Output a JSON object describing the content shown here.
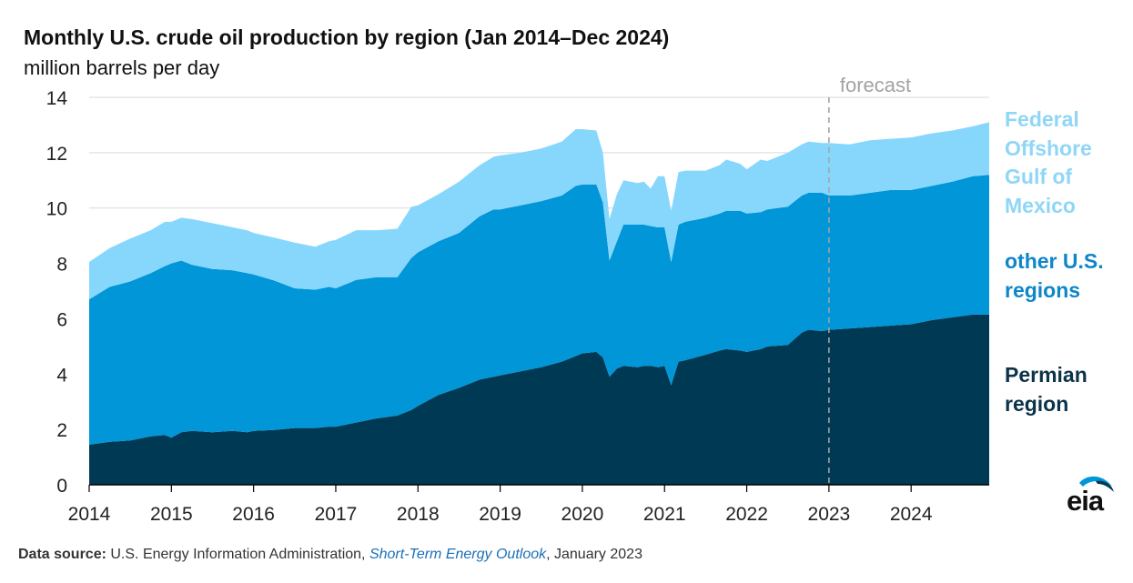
{
  "title": "Monthly U.S. crude oil production by region (Jan 2014–Dec 2024)",
  "unit": "million barrels per day",
  "source": {
    "label": "Data source:",
    "text1": "U.S. Energy Information Administration,",
    "publication": "Short-Term Energy Outlook",
    "text2": ", January 2023"
  },
  "logo": "eia",
  "chart_data": {
    "type": "area",
    "stacked": true,
    "ylim": [
      0,
      14
    ],
    "y_ticks": [
      0,
      2,
      4,
      6,
      8,
      10,
      12,
      14
    ],
    "x_tick_labels": [
      "2014",
      "2015",
      "2016",
      "2017",
      "2018",
      "2019",
      "2020",
      "2021",
      "2022",
      "2023",
      "2024"
    ],
    "xlim": [
      2014.0,
      2024.95
    ],
    "grid": "horizontal",
    "legend": "right",
    "forecast": {
      "label": "forecast",
      "start": 2023.0
    },
    "colors": {
      "permian": "#003953",
      "other": "#0096d7",
      "gulf": "#87d7fd",
      "grid": "#d9d9d9",
      "forecast_line": "#a3a3a3",
      "legend_dark": "#0b3349",
      "legend_mid": "#0e86c8",
      "legend_light": "#8fd6f7"
    },
    "x": [
      2014.0,
      2014.25,
      2014.5,
      2014.75,
      2014.92,
      2015.0,
      2015.12,
      2015.25,
      2015.5,
      2015.75,
      2015.92,
      2016.0,
      2016.25,
      2016.5,
      2016.75,
      2016.92,
      2017.0,
      2017.25,
      2017.5,
      2017.75,
      2017.92,
      2018.0,
      2018.25,
      2018.5,
      2018.75,
      2018.92,
      2019.0,
      2019.25,
      2019.5,
      2019.75,
      2019.92,
      2020.0,
      2020.17,
      2020.25,
      2020.33,
      2020.42,
      2020.5,
      2020.67,
      2020.75,
      2020.83,
      2020.92,
      2021.0,
      2021.08,
      2021.17,
      2021.25,
      2021.5,
      2021.67,
      2021.75,
      2021.92,
      2022.0,
      2022.17,
      2022.25,
      2022.5,
      2022.67,
      2022.75,
      2022.92,
      2023.0,
      2023.25,
      2023.5,
      2023.75,
      2024.0,
      2024.25,
      2024.5,
      2024.75,
      2024.95
    ],
    "series": [
      {
        "name": "Permian region",
        "values": [
          1.45,
          1.55,
          1.6,
          1.75,
          1.8,
          1.7,
          1.9,
          1.95,
          1.9,
          1.95,
          1.9,
          1.95,
          1.98,
          2.05,
          2.05,
          2.1,
          2.1,
          2.25,
          2.4,
          2.5,
          2.7,
          2.85,
          3.25,
          3.5,
          3.8,
          3.9,
          3.95,
          4.1,
          4.25,
          4.45,
          4.65,
          4.75,
          4.8,
          4.6,
          3.9,
          4.2,
          4.3,
          4.25,
          4.3,
          4.3,
          4.25,
          4.3,
          3.6,
          4.45,
          4.5,
          4.7,
          4.85,
          4.9,
          4.85,
          4.8,
          4.9,
          5.0,
          5.05,
          5.5,
          5.6,
          5.55,
          5.6,
          5.65,
          5.7,
          5.75,
          5.8,
          5.95,
          6.05,
          6.15,
          6.15
        ]
      },
      {
        "name": "other U.S. regions",
        "values": [
          5.25,
          5.6,
          5.75,
          5.9,
          6.1,
          6.3,
          6.2,
          6.0,
          5.9,
          5.8,
          5.75,
          5.65,
          5.4,
          5.05,
          5.0,
          5.05,
          5.0,
          5.15,
          5.1,
          5.0,
          5.5,
          5.55,
          5.55,
          5.6,
          5.9,
          6.05,
          6.0,
          6.0,
          6.0,
          6.0,
          6.15,
          6.1,
          6.05,
          5.6,
          4.2,
          4.6,
          5.1,
          5.15,
          5.1,
          5.05,
          5.05,
          5.0,
          4.45,
          4.95,
          5.0,
          4.95,
          4.95,
          5.0,
          5.05,
          5.0,
          4.95,
          4.95,
          5.0,
          4.95,
          4.95,
          5.0,
          4.85,
          4.8,
          4.85,
          4.9,
          4.85,
          4.85,
          4.9,
          5.0,
          5.05
        ]
      },
      {
        "name": "Federal Offshore Gulf of Mexico",
        "values": [
          1.35,
          1.4,
          1.55,
          1.55,
          1.6,
          1.5,
          1.55,
          1.65,
          1.65,
          1.55,
          1.55,
          1.5,
          1.55,
          1.65,
          1.55,
          1.65,
          1.75,
          1.8,
          1.7,
          1.75,
          1.85,
          1.7,
          1.7,
          1.85,
          1.85,
          1.9,
          1.95,
          1.9,
          1.9,
          1.95,
          2.05,
          2.0,
          1.95,
          1.8,
          1.5,
          1.7,
          1.6,
          1.5,
          1.55,
          1.35,
          1.85,
          1.85,
          1.85,
          1.9,
          1.85,
          1.7,
          1.75,
          1.85,
          1.7,
          1.6,
          1.9,
          1.75,
          1.95,
          1.85,
          1.85,
          1.8,
          1.9,
          1.85,
          1.9,
          1.85,
          1.9,
          1.9,
          1.85,
          1.8,
          1.9
        ]
      }
    ]
  }
}
